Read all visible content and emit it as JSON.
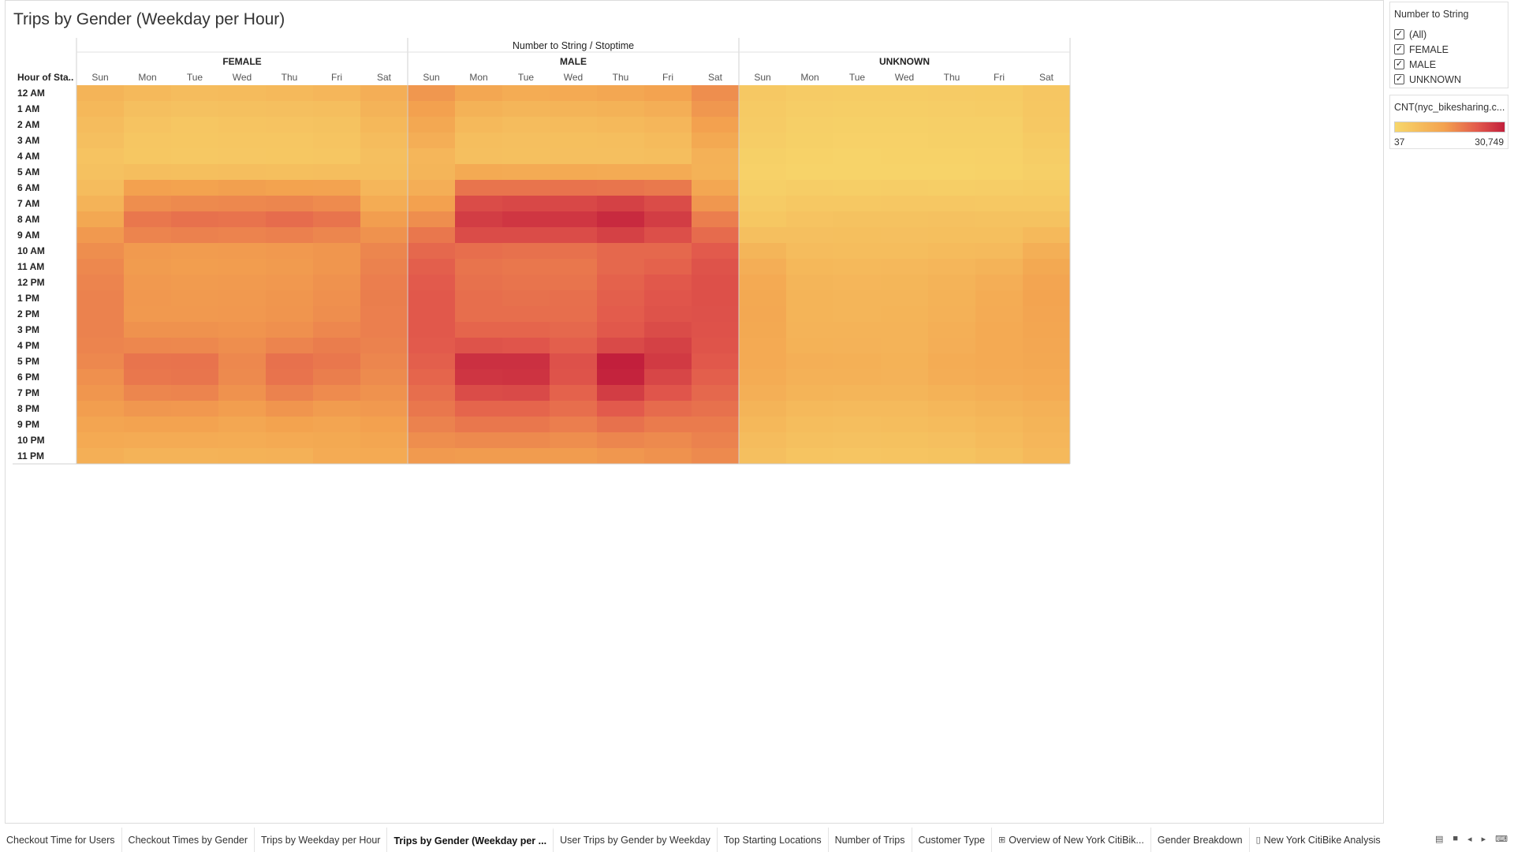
{
  "title": "Trips by Gender (Weekday per Hour)",
  "chart_data": {
    "type": "heatmap",
    "top_header": "Number to String / Stoptime",
    "row_header": "Hour of Sta..",
    "groups": [
      "FEMALE",
      "MALE",
      "UNKNOWN"
    ],
    "days": [
      "Sun",
      "Mon",
      "Tue",
      "Wed",
      "Thu",
      "Fri",
      "Sat"
    ],
    "hours": [
      "12 AM",
      "1 AM",
      "2 AM",
      "3 AM",
      "4 AM",
      "5 AM",
      "6 AM",
      "7 AM",
      "8 AM",
      "9 AM",
      "10 AM",
      "11 AM",
      "12 PM",
      "1 PM",
      "2 PM",
      "3 PM",
      "4 PM",
      "5 PM",
      "6 PM",
      "7 PM",
      "8 PM",
      "9 PM",
      "10 PM",
      "11 PM"
    ],
    "color_min": 37,
    "color_max": 30749,
    "color_scale": [
      "#f7d76b",
      "#f3a24f",
      "#e25a4c",
      "#c21f3c"
    ],
    "values": {
      "FEMALE": [
        [
          1500,
          1100,
          900,
          1000,
          1100,
          1300,
          2000
        ],
        [
          1200,
          700,
          600,
          650,
          700,
          800,
          1600
        ],
        [
          900,
          500,
          400,
          450,
          500,
          550,
          1200
        ],
        [
          700,
          400,
          350,
          380,
          400,
          450,
          900
        ],
        [
          500,
          350,
          300,
          330,
          350,
          400,
          700
        ],
        [
          600,
          800,
          750,
          800,
          750,
          800,
          800
        ],
        [
          900,
          3500,
          3300,
          3600,
          3300,
          3200,
          1300
        ],
        [
          1600,
          5500,
          6000,
          6200,
          6500,
          5800,
          2200
        ],
        [
          2700,
          8500,
          9500,
          9200,
          10200,
          9000,
          3800
        ],
        [
          4300,
          6800,
          7200,
          6900,
          7300,
          6500,
          5000
        ],
        [
          5500,
          4200,
          4000,
          4100,
          4300,
          4600,
          6500
        ],
        [
          6200,
          4000,
          3800,
          3900,
          4100,
          4600,
          7000
        ],
        [
          6800,
          4300,
          4100,
          4200,
          4400,
          5000,
          7500
        ],
        [
          7000,
          4400,
          4200,
          4300,
          4600,
          5300,
          7600
        ],
        [
          7000,
          4300,
          4300,
          4400,
          4700,
          5500,
          7400
        ],
        [
          7000,
          5000,
          5000,
          4800,
          5300,
          6300,
          7400
        ],
        [
          6700,
          6300,
          6200,
          5500,
          6700,
          7700,
          7000
        ],
        [
          6200,
          9000,
          9200,
          6200,
          9500,
          8500,
          6500
        ],
        [
          5300,
          8500,
          8800,
          6000,
          9200,
          7600,
          5900
        ],
        [
          4600,
          6500,
          6700,
          5000,
          7000,
          5800,
          5000
        ],
        [
          3800,
          4500,
          4400,
          3800,
          4700,
          4000,
          4300
        ],
        [
          3000,
          3200,
          3200,
          2800,
          3300,
          3000,
          3500
        ],
        [
          2500,
          2300,
          2300,
          2200,
          2500,
          2600,
          2900
        ],
        [
          1900,
          1600,
          1600,
          1700,
          1800,
          2300,
          2500
        ]
      ],
      "MALE": [
        [
          4500,
          2800,
          2200,
          2400,
          2800,
          3200,
          5500
        ],
        [
          3500,
          1700,
          1400,
          1500,
          1700,
          2000,
          4500
        ],
        [
          2700,
          1100,
          900,
          1000,
          1100,
          1300,
          3500
        ],
        [
          2000,
          800,
          700,
          750,
          800,
          950,
          2600
        ],
        [
          1300,
          700,
          650,
          700,
          700,
          800,
          1800
        ],
        [
          1400,
          2400,
          2300,
          2400,
          2300,
          2300,
          1700
        ],
        [
          2000,
          9000,
          9000,
          9200,
          8800,
          8300,
          2800
        ],
        [
          3500,
          17000,
          18000,
          18000,
          20000,
          17000,
          4500
        ],
        [
          5500,
          21000,
          23000,
          23000,
          27000,
          21000,
          7500
        ],
        [
          8500,
          17000,
          17000,
          17000,
          20000,
          16000,
          10500
        ],
        [
          11000,
          10000,
          9500,
          9500,
          11000,
          11000,
          13500
        ],
        [
          12500,
          9000,
          8500,
          8500,
          11000,
          12000,
          15000
        ],
        [
          13500,
          9500,
          9000,
          9000,
          12000,
          14000,
          15800
        ],
        [
          14000,
          10000,
          9500,
          9800,
          12500,
          14500,
          15800
        ],
        [
          14000,
          10000,
          10000,
          10000,
          13000,
          15000,
          15500
        ],
        [
          14000,
          11500,
          11500,
          11000,
          14000,
          17000,
          15300
        ],
        [
          13500,
          15000,
          14500,
          12500,
          17500,
          20000,
          14800
        ],
        [
          12500,
          25000,
          25000,
          15500,
          30749,
          22000,
          14000
        ],
        [
          11500,
          23500,
          24000,
          15000,
          29500,
          18500,
          12500
        ],
        [
          10000,
          17000,
          17500,
          12000,
          21000,
          14500,
          11000
        ],
        [
          8500,
          11500,
          11500,
          10000,
          13500,
          10500,
          9500
        ],
        [
          7000,
          8500,
          8500,
          7500,
          9500,
          8000,
          8000
        ],
        [
          5500,
          6000,
          6000,
          5500,
          6500,
          6000,
          7000
        ],
        [
          4200,
          4000,
          4000,
          4000,
          4500,
          5000,
          6000
        ]
      ],
      "UNKNOWN": [
        [
          300,
          200,
          180,
          190,
          200,
          220,
          400
        ],
        [
          250,
          150,
          130,
          140,
          150,
          170,
          350
        ],
        [
          200,
          110,
          100,
          100,
          110,
          120,
          300
        ],
        [
          150,
          90,
          80,
          85,
          90,
          100,
          220
        ],
        [
          100,
          70,
          60,
          65,
          70,
          80,
          150
        ],
        [
          80,
          60,
          55,
          60,
          60,
          65,
          120
        ],
        [
          120,
          150,
          140,
          150,
          140,
          150,
          180
        ],
        [
          200,
          300,
          320,
          330,
          340,
          320,
          320
        ],
        [
          350,
          500,
          550,
          540,
          600,
          560,
          550
        ],
        [
          700,
          700,
          720,
          700,
          750,
          720,
          1100
        ],
        [
          1400,
          900,
          850,
          870,
          950,
          1050,
          1900
        ],
        [
          2000,
          1200,
          1100,
          1150,
          1300,
          1600,
          2600
        ],
        [
          2500,
          1400,
          1300,
          1350,
          1600,
          2000,
          3000
        ],
        [
          2600,
          1500,
          1400,
          1450,
          1700,
          2200,
          3100
        ],
        [
          2700,
          1500,
          1450,
          1500,
          1800,
          2300,
          3000
        ],
        [
          2600,
          1600,
          1550,
          1550,
          1900,
          2400,
          2900
        ],
        [
          2500,
          1700,
          1650,
          1600,
          2000,
          2500,
          2800
        ],
        [
          2400,
          1900,
          1850,
          1700,
          2200,
          2500,
          2700
        ],
        [
          2200,
          1800,
          1750,
          1650,
          2100,
          2300,
          2500
        ],
        [
          1900,
          1500,
          1450,
          1400,
          1700,
          1900,
          2200
        ],
        [
          1500,
          1100,
          1050,
          1050,
          1250,
          1500,
          1800
        ],
        [
          1200,
          850,
          800,
          820,
          950,
          1200,
          1500
        ],
        [
          900,
          650,
          600,
          620,
          700,
          950,
          1300
        ],
        [
          700,
          450,
          420,
          450,
          520,
          750,
          1100
        ]
      ]
    }
  },
  "filter": {
    "title": "Number to String",
    "options": [
      {
        "label": "(All)",
        "checked": true
      },
      {
        "label": "FEMALE",
        "checked": true
      },
      {
        "label": "MALE",
        "checked": true
      },
      {
        "label": "UNKNOWN",
        "checked": true
      }
    ]
  },
  "legend": {
    "title": "CNT(nyc_bikesharing.c...",
    "min_label": "37",
    "max_label": "30,749"
  },
  "tabs": [
    {
      "label": "Checkout Time for Users",
      "icon": "",
      "active": false
    },
    {
      "label": "Checkout Times by Gender",
      "icon": "",
      "active": false
    },
    {
      "label": "Trips by Weekday per Hour",
      "icon": "",
      "active": false
    },
    {
      "label": "Trips by Gender (Weekday per ...",
      "icon": "",
      "active": true
    },
    {
      "label": "User Trips by Gender by Weekday",
      "icon": "",
      "active": false
    },
    {
      "label": "Top Starting Locations",
      "icon": "",
      "active": false
    },
    {
      "label": "Number of Trips",
      "icon": "",
      "active": false
    },
    {
      "label": "Customer Type",
      "icon": "",
      "active": false
    },
    {
      "label": "Overview of New York CitiBik...",
      "icon": "dashboard-icon",
      "active": false
    },
    {
      "label": "Gender Breakdown",
      "icon": "",
      "active": false
    },
    {
      "label": "New York CitiBike Analysis",
      "icon": "story-icon",
      "active": false
    }
  ],
  "nav": {
    "filmstrip": "▤",
    "tabs_view": "■",
    "prev": "◂",
    "next": "▸",
    "present": "⌨"
  }
}
